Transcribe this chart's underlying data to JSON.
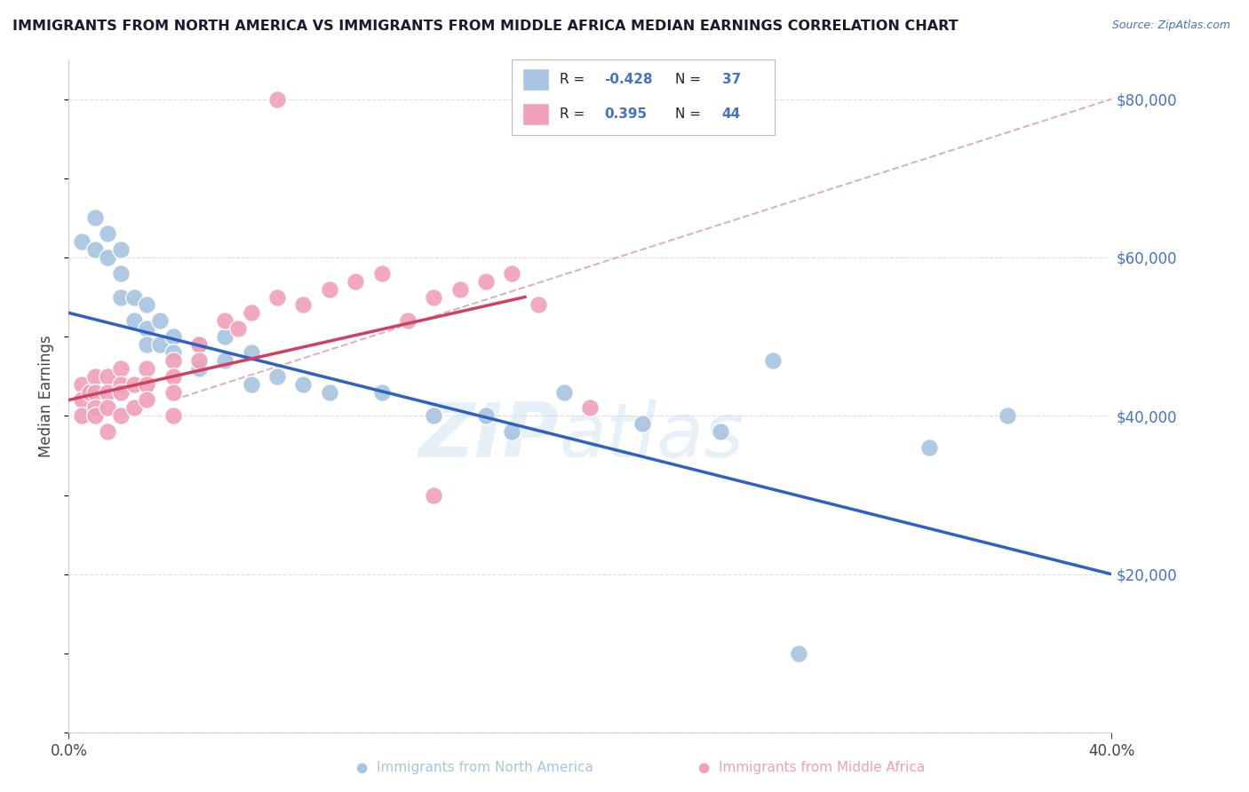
{
  "title": "IMMIGRANTS FROM NORTH AMERICA VS IMMIGRANTS FROM MIDDLE AFRICA MEDIAN EARNINGS CORRELATION CHART",
  "source": "Source: ZipAtlas.com",
  "ylabel": "Median Earnings",
  "xlim": [
    0.0,
    0.4
  ],
  "ylim": [
    0,
    85000
  ],
  "yticks": [
    0,
    20000,
    40000,
    60000,
    80000
  ],
  "xticks": [
    0.0,
    0.4
  ],
  "R_blue": -0.428,
  "N_blue": 37,
  "R_pink": 0.395,
  "N_pink": 44,
  "blue_color": "#a8c4e0",
  "pink_color": "#f0a0b8",
  "blue_line_color": "#3060c0",
  "pink_line_color": "#d04060",
  "gray_line_color": "#d0a0b0",
  "blue_line_x": [
    0.0,
    0.4
  ],
  "blue_line_y": [
    53000,
    20000
  ],
  "pink_line_x": [
    0.0,
    0.175
  ],
  "pink_line_y": [
    42000,
    55000
  ],
  "gray_line_x": [
    0.04,
    0.4
  ],
  "gray_line_y": [
    42000,
    80000
  ],
  "blue_x": [
    0.005,
    0.01,
    0.01,
    0.015,
    0.015,
    0.02,
    0.02,
    0.02,
    0.025,
    0.025,
    0.03,
    0.03,
    0.03,
    0.035,
    0.035,
    0.04,
    0.04,
    0.05,
    0.05,
    0.06,
    0.06,
    0.07,
    0.07,
    0.08,
    0.09,
    0.1,
    0.12,
    0.14,
    0.16,
    0.17,
    0.19,
    0.22,
    0.25,
    0.27,
    0.33,
    0.36,
    0.28
  ],
  "blue_y": [
    62000,
    65000,
    61000,
    63000,
    60000,
    61000,
    58000,
    55000,
    55000,
    52000,
    54000,
    51000,
    49000,
    52000,
    49000,
    50000,
    48000,
    49000,
    46000,
    50000,
    47000,
    48000,
    44000,
    45000,
    44000,
    43000,
    43000,
    40000,
    40000,
    38000,
    43000,
    39000,
    38000,
    47000,
    36000,
    40000,
    10000
  ],
  "pink_x": [
    0.005,
    0.005,
    0.005,
    0.008,
    0.01,
    0.01,
    0.01,
    0.01,
    0.015,
    0.015,
    0.015,
    0.015,
    0.02,
    0.02,
    0.02,
    0.02,
    0.025,
    0.025,
    0.03,
    0.03,
    0.03,
    0.04,
    0.04,
    0.04,
    0.04,
    0.05,
    0.05,
    0.06,
    0.065,
    0.07,
    0.08,
    0.09,
    0.1,
    0.11,
    0.12,
    0.13,
    0.14,
    0.15,
    0.16,
    0.17,
    0.18,
    0.2,
    0.14,
    0.08
  ],
  "pink_y": [
    44000,
    42000,
    40000,
    43000,
    45000,
    43000,
    41000,
    40000,
    45000,
    43000,
    41000,
    38000,
    46000,
    44000,
    43000,
    40000,
    44000,
    41000,
    46000,
    44000,
    42000,
    47000,
    45000,
    43000,
    40000,
    49000,
    47000,
    52000,
    51000,
    53000,
    55000,
    54000,
    56000,
    57000,
    58000,
    52000,
    55000,
    56000,
    57000,
    58000,
    54000,
    41000,
    30000,
    80000
  ]
}
